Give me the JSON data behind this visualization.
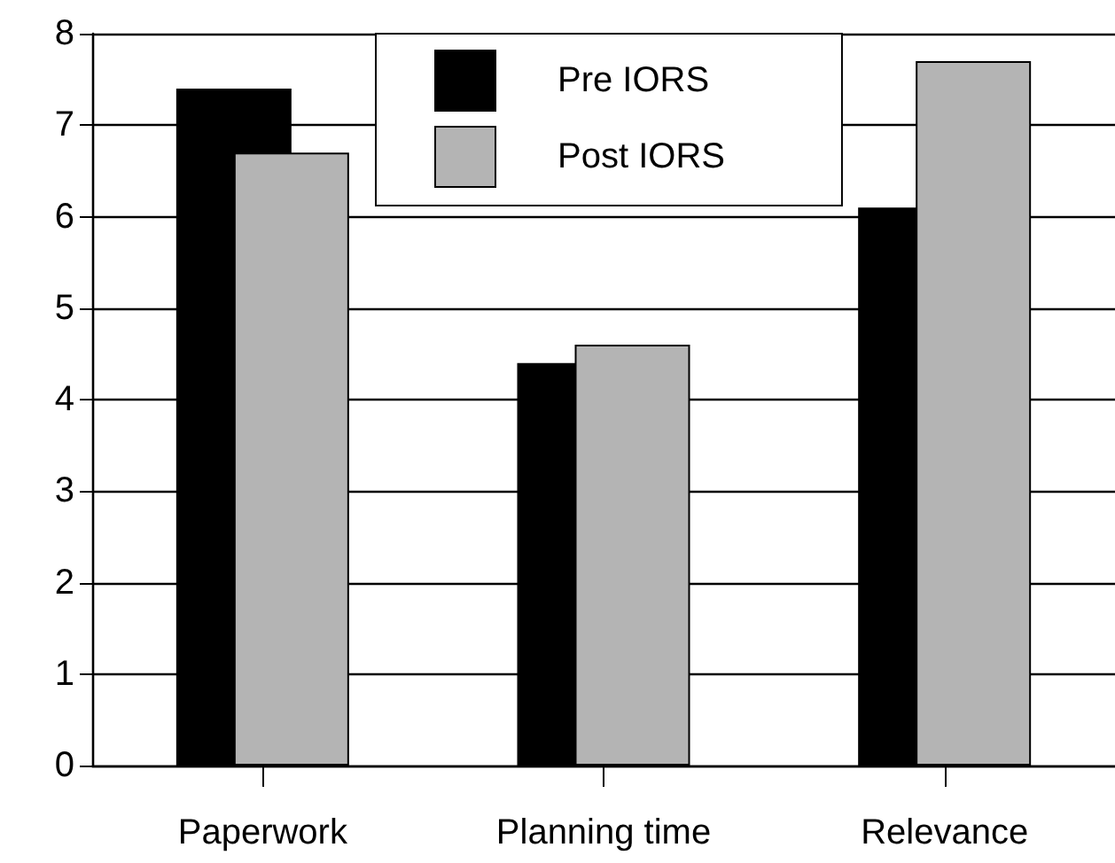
{
  "chart_data": {
    "type": "bar",
    "categories": [
      "Paperwork",
      "Planning time",
      "Relevance"
    ],
    "series": [
      {
        "name": "Pre IORS",
        "color": "#000000",
        "values": [
          7.4,
          4.4,
          6.1
        ]
      },
      {
        "name": "Post IORS",
        "color": "#b4b4b4",
        "values": [
          6.7,
          4.6,
          7.7
        ]
      }
    ],
    "ylim": [
      0,
      8
    ],
    "yticks": [
      0,
      1,
      2,
      3,
      4,
      5,
      6,
      7,
      8
    ],
    "grid": "y",
    "legend": "top"
  }
}
